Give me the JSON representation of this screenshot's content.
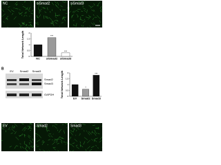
{
  "images_top": {
    "labels": [
      "NC",
      "siSmad2",
      "siSmad3"
    ]
  },
  "panel_label": "B",
  "blot": {
    "columns": [
      "EV",
      "Smad2",
      "Smad3"
    ],
    "rows": [
      "Smad2",
      "Smad3",
      "GAPDH"
    ]
  },
  "images_bottom": {
    "labels": [
      "EV",
      "Smad2",
      "Smad3"
    ]
  },
  "chart_data": [
    {
      "type": "bar",
      "y_label": "Total Network Length",
      "categories": [
        "NC",
        "siSmad2",
        "siSmad3"
      ],
      "values": [
        1.0,
        1.6,
        0.3
      ],
      "colors": [
        "#111111",
        "#9a9a9a",
        "#ffffff"
      ],
      "annotations": [
        null,
        "***",
        "***"
      ],
      "ylim": [
        0,
        2
      ],
      "yticks": [
        0,
        0.5,
        1,
        1.5,
        2
      ]
    },
    {
      "type": "bar",
      "y_label": "Total Network Length",
      "categories": [
        "EV",
        "Smad2",
        "Smad3"
      ],
      "values": [
        1.0,
        0.6,
        1.8
      ],
      "colors": [
        "#111111",
        "#9a9a9a",
        "#111111"
      ],
      "annotations": [
        null,
        "*",
        "***"
      ],
      "ylim": [
        0,
        2
      ],
      "yticks": [
        0,
        0.5,
        1,
        1.5,
        2
      ]
    }
  ]
}
